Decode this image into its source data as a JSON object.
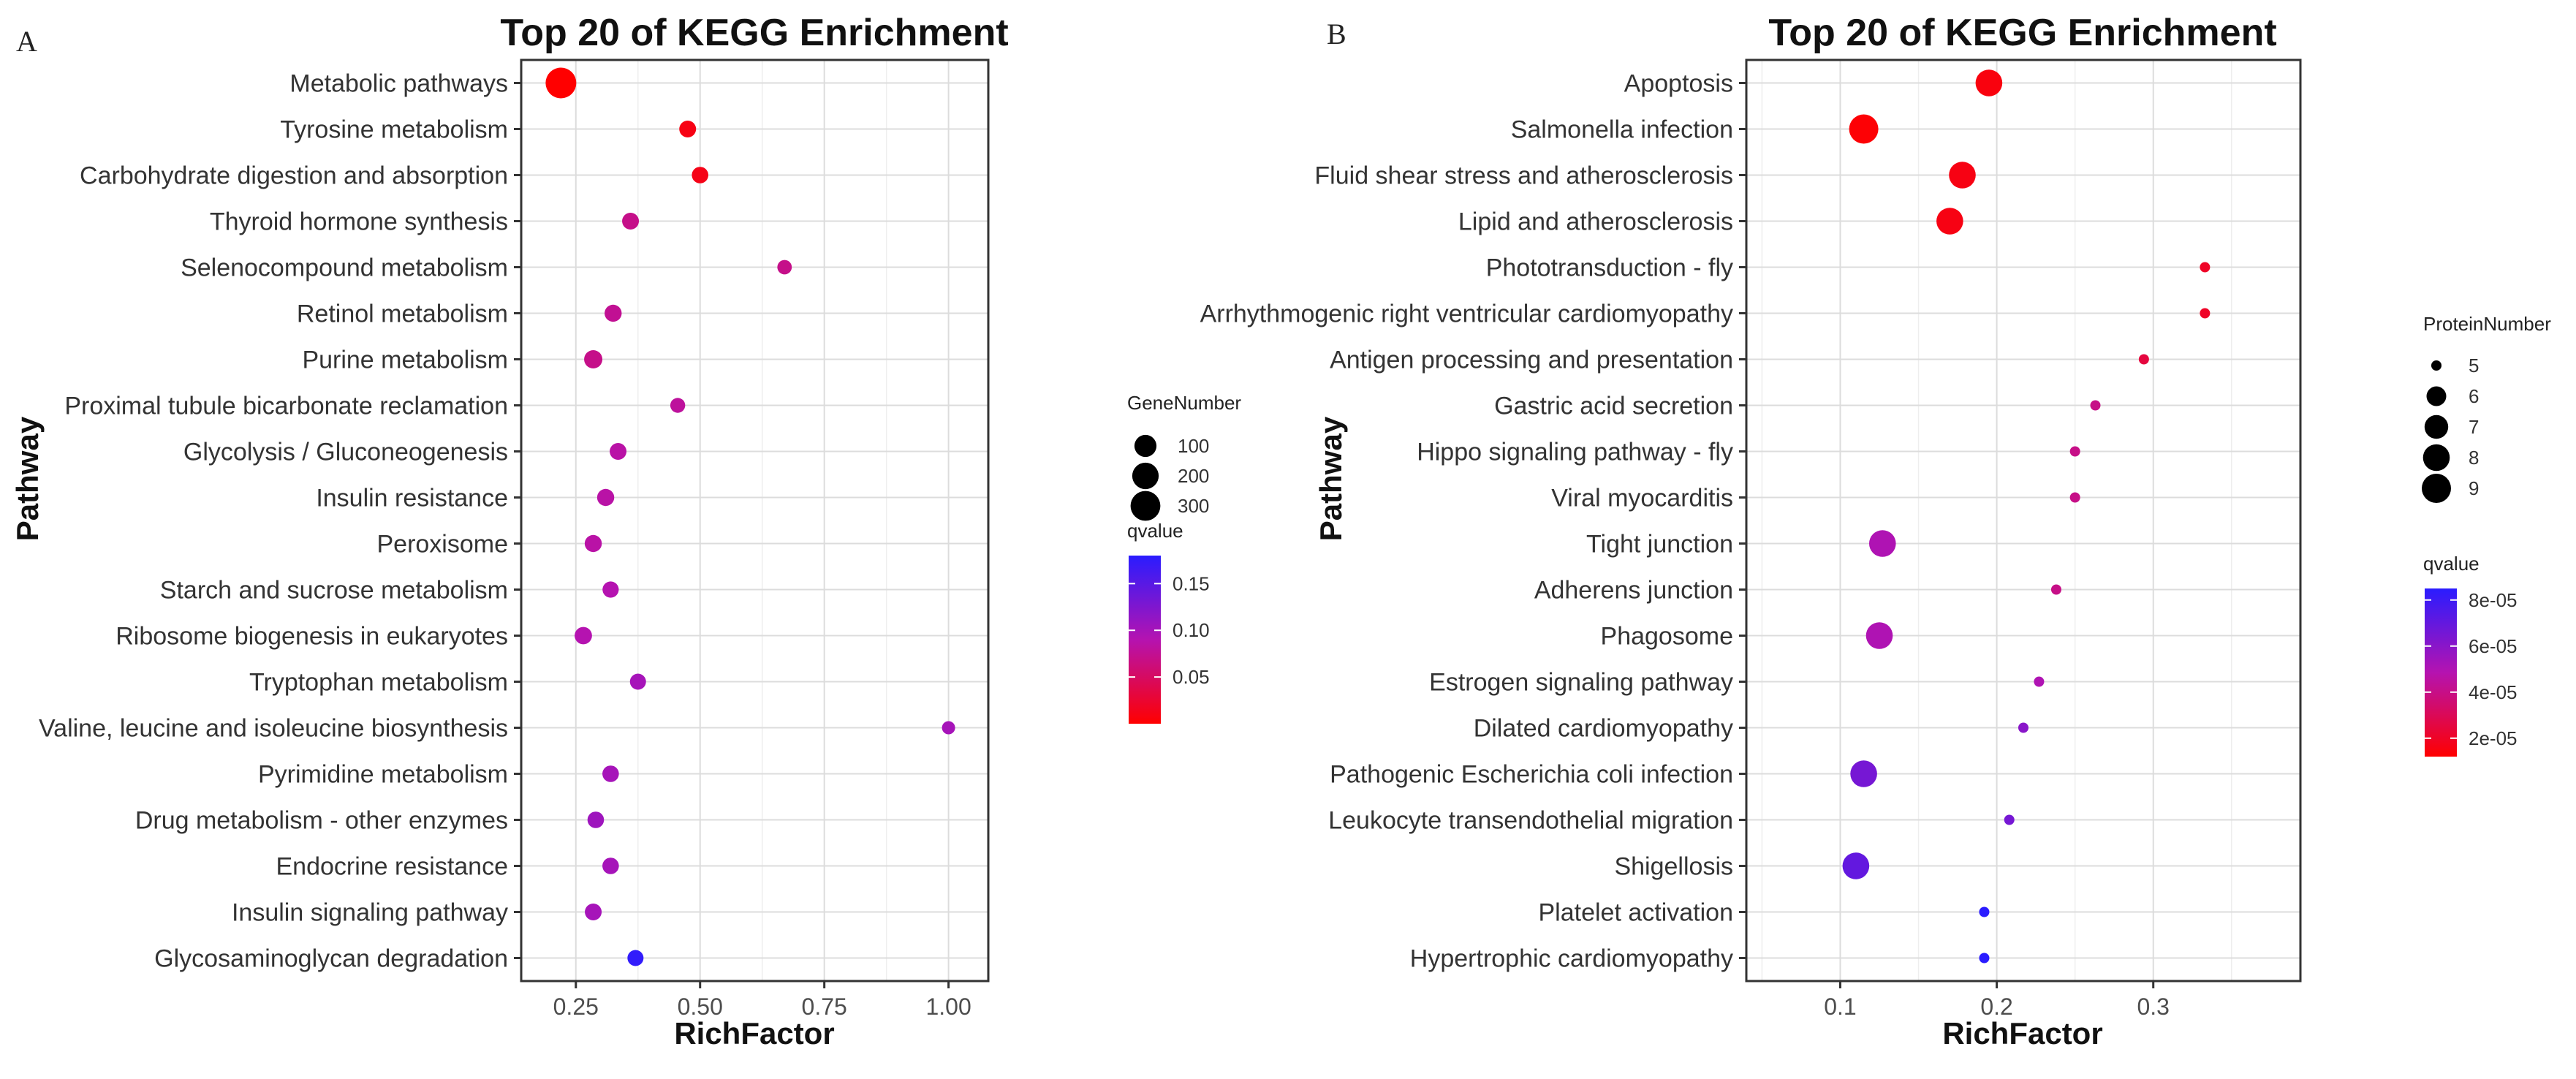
{
  "chart_data": [
    {
      "type": "scatter",
      "panel_label": "A",
      "title": "Top 20 of KEGG Enrichment",
      "xlabel": "RichFactor",
      "ylabel": "Pathway",
      "xlim": [
        0.14,
        1.08
      ],
      "xticks": [
        0.25,
        0.5,
        0.75,
        1.0
      ],
      "xtick_labels": [
        "0.25",
        "0.50",
        "0.75",
        "1.00"
      ],
      "size_legend": {
        "title": "GeneNumber",
        "range": [
          1,
          330
        ],
        "entries": [
          100,
          200,
          300
        ]
      },
      "color_legend": {
        "title": "qvalue",
        "range": [
          0.0,
          0.18
        ],
        "low_color": "#ff0000",
        "high_color": "#2a1cff",
        "ticks": [
          0.05,
          0.1,
          0.15
        ],
        "tick_labels": [
          "0.05",
          "0.10",
          "0.15"
        ]
      },
      "points": [
        {
          "pathway": "Metabolic pathways",
          "richfactor": 0.22,
          "count": 330,
          "qvalue": 0.0
        },
        {
          "pathway": "Tyrosine metabolism",
          "richfactor": 0.475,
          "count": 25,
          "qvalue": 0.01
        },
        {
          "pathway": "Carbohydrate digestion and absorption",
          "richfactor": 0.5,
          "count": 22,
          "qvalue": 0.012
        },
        {
          "pathway": "Thyroid hormone synthesis",
          "richfactor": 0.36,
          "count": 25,
          "qvalue": 0.07
        },
        {
          "pathway": "Selenocompound metabolism",
          "richfactor": 0.67,
          "count": 8,
          "qvalue": 0.07
        },
        {
          "pathway": "Retinol metabolism",
          "richfactor": 0.325,
          "count": 28,
          "qvalue": 0.075
        },
        {
          "pathway": "Purine metabolism",
          "richfactor": 0.285,
          "count": 40,
          "qvalue": 0.07
        },
        {
          "pathway": "Proximal tubule bicarbonate reclamation",
          "richfactor": 0.455,
          "count": 10,
          "qvalue": 0.08
        },
        {
          "pathway": "Glycolysis / Gluconeogenesis",
          "richfactor": 0.335,
          "count": 25,
          "qvalue": 0.085
        },
        {
          "pathway": "Insulin resistance",
          "richfactor": 0.31,
          "count": 28,
          "qvalue": 0.085
        },
        {
          "pathway": "Peroxisome",
          "richfactor": 0.285,
          "count": 28,
          "qvalue": 0.085
        },
        {
          "pathway": "Starch and sucrose metabolism",
          "richfactor": 0.32,
          "count": 20,
          "qvalue": 0.09
        },
        {
          "pathway": "Ribosome biogenesis in eukaryotes",
          "richfactor": 0.265,
          "count": 30,
          "qvalue": 0.09
        },
        {
          "pathway": "Tryptophan metabolism",
          "richfactor": 0.375,
          "count": 18,
          "qvalue": 0.1
        },
        {
          "pathway": "Valine, leucine and isoleucine biosynthesis",
          "richfactor": 1.0,
          "count": 3,
          "qvalue": 0.1
        },
        {
          "pathway": "Pyrimidine metabolism",
          "richfactor": 0.32,
          "count": 22,
          "qvalue": 0.1
        },
        {
          "pathway": "Drug metabolism - other enzymes",
          "richfactor": 0.29,
          "count": 22,
          "qvalue": 0.105
        },
        {
          "pathway": "Endocrine resistance",
          "richfactor": 0.32,
          "count": 22,
          "qvalue": 0.1
        },
        {
          "pathway": "Insulin signaling pathway",
          "richfactor": 0.285,
          "count": 25,
          "qvalue": 0.1
        },
        {
          "pathway": "Glycosaminoglycan degradation",
          "richfactor": 0.37,
          "count": 18,
          "qvalue": 0.175
        }
      ]
    },
    {
      "type": "scatter",
      "panel_label": "B",
      "title": "Top 20 of KEGG Enrichment",
      "xlabel": "RichFactor",
      "ylabel": "Pathway",
      "xlim": [
        0.04,
        0.394
      ],
      "xticks": [
        0.1,
        0.2,
        0.3
      ],
      "xtick_labels": [
        "0.1",
        "0.2",
        "0.3"
      ],
      "size_legend": {
        "title": "ProteinNumber",
        "range": [
          5,
          9
        ],
        "entries": [
          5,
          6,
          7,
          8,
          9
        ]
      },
      "color_legend": {
        "title": "qvalue",
        "range": [
          1.2e-05,
          8.5e-05
        ],
        "low_color": "#ff0000",
        "high_color": "#2a1cff",
        "ticks": [
          2e-05,
          4e-05,
          6e-05,
          8e-05
        ],
        "tick_labels": [
          "2e-05",
          "4e-05",
          "6e-05",
          "8e-05"
        ]
      },
      "points": [
        {
          "pathway": "Apoptosis",
          "richfactor": 0.195,
          "count": 8,
          "qvalue": 1.5e-05
        },
        {
          "pathway": "Salmonella infection",
          "richfactor": 0.115,
          "count": 9,
          "qvalue": 1.3e-05
        },
        {
          "pathway": "Fluid shear stress and atherosclerosis",
          "richfactor": 0.178,
          "count": 8,
          "qvalue": 1.6e-05
        },
        {
          "pathway": "Lipid and atherosclerosis",
          "richfactor": 0.17,
          "count": 8,
          "qvalue": 1.6e-05
        },
        {
          "pathway": "Phototransduction - fly",
          "richfactor": 0.333,
          "count": 5,
          "qvalue": 2e-05
        },
        {
          "pathway": "Arrhythmogenic right ventricular cardiomyopathy",
          "richfactor": 0.333,
          "count": 5,
          "qvalue": 2e-05
        },
        {
          "pathway": "Antigen processing and presentation",
          "richfactor": 0.294,
          "count": 5,
          "qvalue": 2.5e-05
        },
        {
          "pathway": "Gastric acid secretion",
          "richfactor": 0.263,
          "count": 5,
          "qvalue": 4e-05
        },
        {
          "pathway": "Hippo signaling pathway - fly",
          "richfactor": 0.25,
          "count": 5,
          "qvalue": 4e-05
        },
        {
          "pathway": "Viral myocarditis",
          "richfactor": 0.25,
          "count": 5,
          "qvalue": 4e-05
        },
        {
          "pathway": "Tight junction",
          "richfactor": 0.127,
          "count": 8,
          "qvalue": 5e-05
        },
        {
          "pathway": "Adherens junction",
          "richfactor": 0.238,
          "count": 5,
          "qvalue": 4e-05
        },
        {
          "pathway": "Phagosome",
          "richfactor": 0.125,
          "count": 8,
          "qvalue": 5e-05
        },
        {
          "pathway": "Estrogen signaling pathway",
          "richfactor": 0.227,
          "count": 5,
          "qvalue": 5e-05
        },
        {
          "pathway": "Dilated cardiomyopathy",
          "richfactor": 0.217,
          "count": 5,
          "qvalue": 6e-05
        },
        {
          "pathway": "Pathogenic Escherichia coli infection",
          "richfactor": 0.115,
          "count": 8,
          "qvalue": 6.5e-05
        },
        {
          "pathway": "Leukocyte transendothelial migration",
          "richfactor": 0.208,
          "count": 5,
          "qvalue": 6.5e-05
        },
        {
          "pathway": "Shigellosis",
          "richfactor": 0.11,
          "count": 8,
          "qvalue": 7e-05
        },
        {
          "pathway": "Platelet activation",
          "richfactor": 0.192,
          "count": 5,
          "qvalue": 8.5e-05
        },
        {
          "pathway": "Hypertrophic cardiomyopathy",
          "richfactor": 0.192,
          "count": 5,
          "qvalue": 8.5e-05
        }
      ]
    }
  ]
}
